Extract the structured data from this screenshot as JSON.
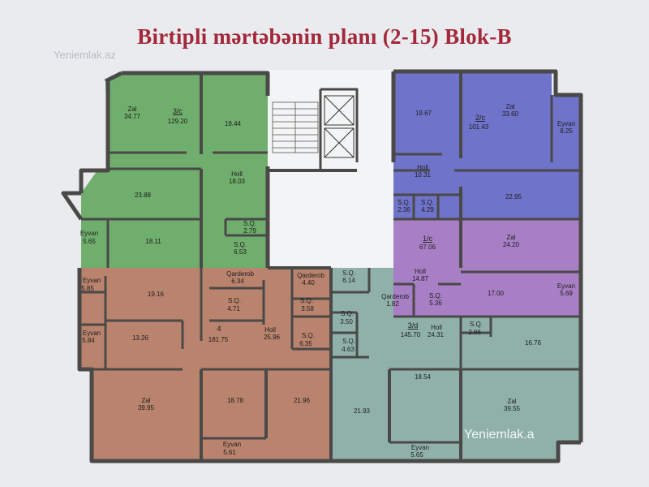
{
  "title": "Birtipli mərtəbənin planı (2-15) Blok-B",
  "watermarks": [
    "Yeniemlak.az",
    "Yeniemlak.a"
  ],
  "colors": {
    "green": "#6fae6c",
    "blue": "#6f73c9",
    "violet": "#a87ec5",
    "brown": "#b9836d",
    "teal": "#8fb1a9",
    "core": "#f3f4f5",
    "wall": "#4a4948",
    "title": "#a3283b"
  },
  "apartments": {
    "green": {
      "name": "3/c",
      "total": "129.20",
      "rooms": {
        "zal_label": "Zal",
        "zal_area": "34.77",
        "room_19_44": "19.44",
        "holl_label": "Holl",
        "holl_area": "18.03",
        "room_23_88": "23.88",
        "room_18_11": "18.11",
        "eyvan_label": "Eyvan",
        "eyvan_area": "5.65",
        "sq1_label": "S.Q.",
        "sq1_area": "2.79",
        "sq2_label": "S.Q.",
        "sq2_area": "6.53"
      }
    },
    "blue": {
      "name": "2/c",
      "total": "101.43",
      "rooms": {
        "room_19_67": "19.67",
        "zal_label": "Zal",
        "zal_area": "33.60",
        "eyvan_label": "Eyvan",
        "eyvan_area": "8.25",
        "holl_label": "Holl",
        "holl_area": "10.31",
        "sq1_label": "S.Q.",
        "sq1_area": "2.36",
        "sq2_label": "S.Q.",
        "sq2_area": "4.29",
        "room_22_95": "22.95"
      }
    },
    "violet": {
      "name": "1/c",
      "total": "67.06",
      "rooms": {
        "zal_label": "Zal",
        "zal_area": "24.20",
        "holl_label": "Holl",
        "holl_area": "14.87",
        "sq_label": "S.Q.",
        "sq_area": "5.36",
        "room_17_00": "17.00",
        "eyvan_label": "Eyvan",
        "eyvan_area": "5.69"
      }
    },
    "brown": {
      "name": "4",
      "total": "181.75",
      "rooms": {
        "eyvan1_label": "Eyvan",
        "eyvan1_area": "5.85",
        "room_19_16": "19.16",
        "qarderob_label": "Qarderob",
        "qarderob_area": "6.34",
        "sq1_label": "S.Q.",
        "sq1_area": "4.71",
        "eyvan2_label": "Eyvan",
        "eyvan2_area": "5.84",
        "room_13_26": "13.26",
        "holl_label": "Holl",
        "holl_area": "25.96",
        "qarderob2_label": "Qarderob",
        "qarderob2_area": "4.40",
        "sq2_label": "S.Q.",
        "sq2_area": "3.58",
        "sq3_label": "S.Q.",
        "sq3_area": "6.35",
        "zal_label": "Zal",
        "zal_area": "39.95",
        "room_18_78": "18.78",
        "room_21_96": "21.96",
        "eyvan3_label": "Eyvan",
        "eyvan3_area": "5.61"
      }
    },
    "teal": {
      "name": "3/d",
      "total": "145.70",
      "rooms": {
        "sq1_label": "S.Q.",
        "sq1_area": "6.14",
        "qarderob_label": "Qarderob",
        "qarderob_area": "1.82",
        "sq2_label": "S.Q.",
        "sq2_area": "3.50",
        "sq3_label": "S.Q.",
        "sq3_area": "4.63",
        "holl_label": "Holl",
        "holl_area": "24.31",
        "sq4_label": "S.Q.",
        "sq4_area": "2.86",
        "room_16_76": "16.76",
        "room_21_93": "21.93",
        "room_18_54": "18.54",
        "zal_label": "Zal",
        "zal_area": "39.55",
        "eyvan_label": "Eyvan",
        "eyvan_area": "5.65"
      }
    }
  }
}
